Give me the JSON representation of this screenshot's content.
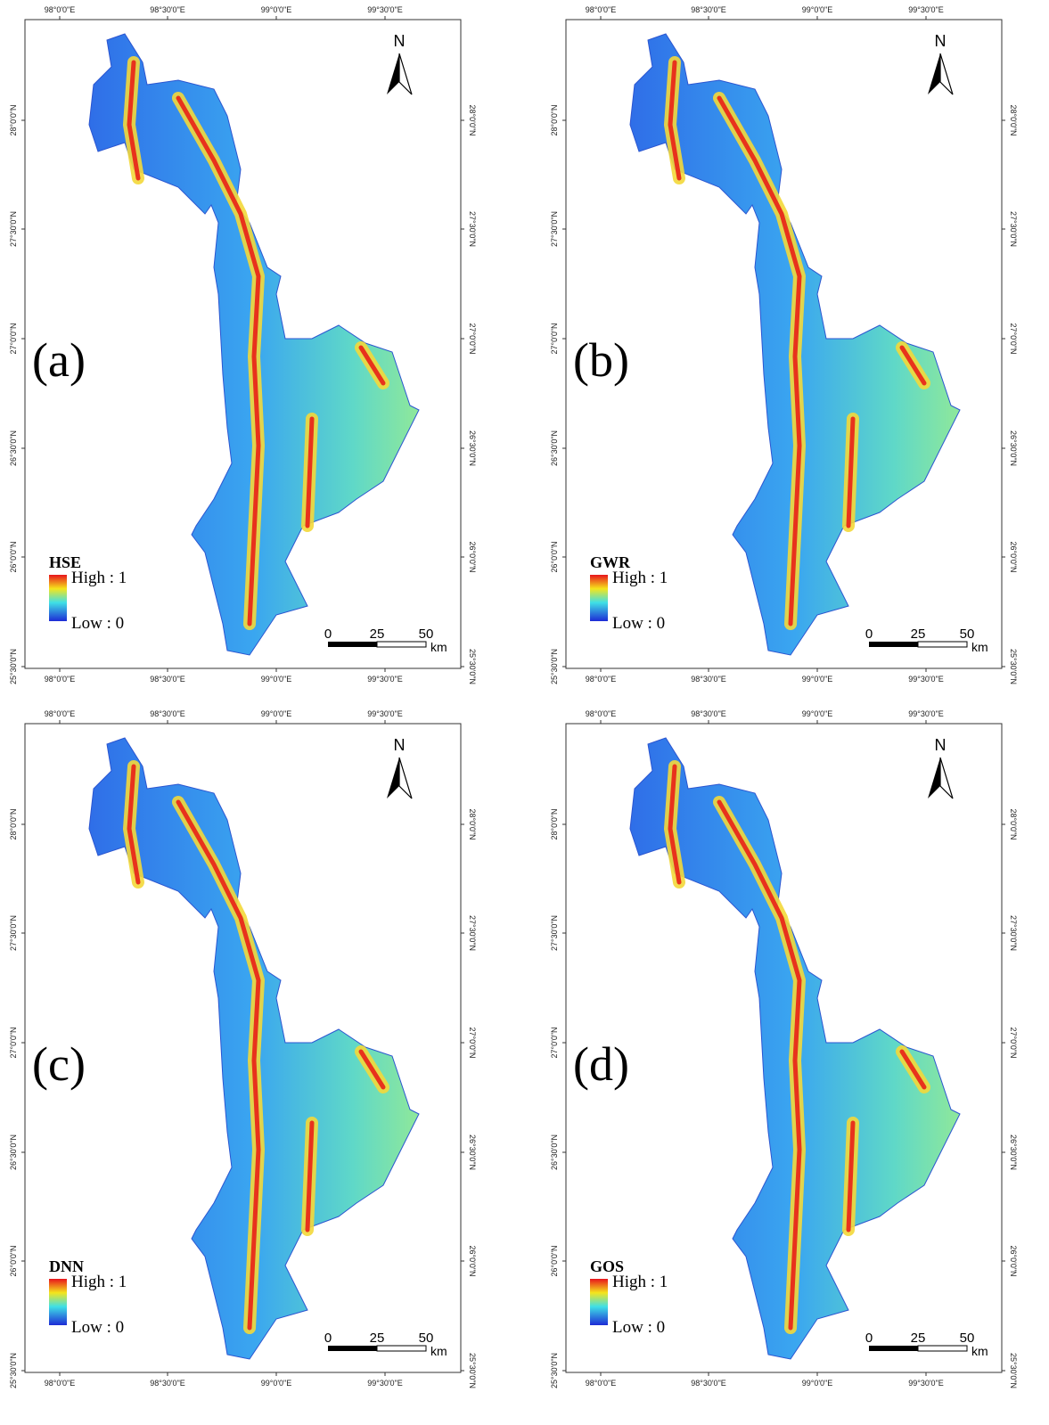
{
  "panels": [
    {
      "label": "(a)",
      "legend": {
        "title": "HSE",
        "high": "High : 1",
        "low": "Low : 0"
      }
    },
    {
      "label": "(b)",
      "legend": {
        "title": "GWR",
        "high": "High : 1",
        "low": "Low : 0"
      }
    },
    {
      "label": "(c)",
      "legend": {
        "title": "DNN",
        "high": "High : 1",
        "low": "Low : 0"
      }
    },
    {
      "label": "(d)",
      "legend": {
        "title": "GOS",
        "high": "High : 1",
        "low": "Low : 0"
      }
    }
  ],
  "x_labels": [
    "98°0'0\"E",
    "98°30'0\"E",
    "99°0'0\"E",
    "99°30'0\"E"
  ],
  "y_labels": [
    "28°0'0\"N",
    "27°30'0\"N",
    "27°0'0\"N",
    "26°30'0\"N",
    "26°0'0\"N",
    "25°30'0\"N"
  ],
  "north": "N",
  "scale": {
    "ticks": [
      "0",
      "25",
      "50"
    ],
    "unit": "km"
  }
}
